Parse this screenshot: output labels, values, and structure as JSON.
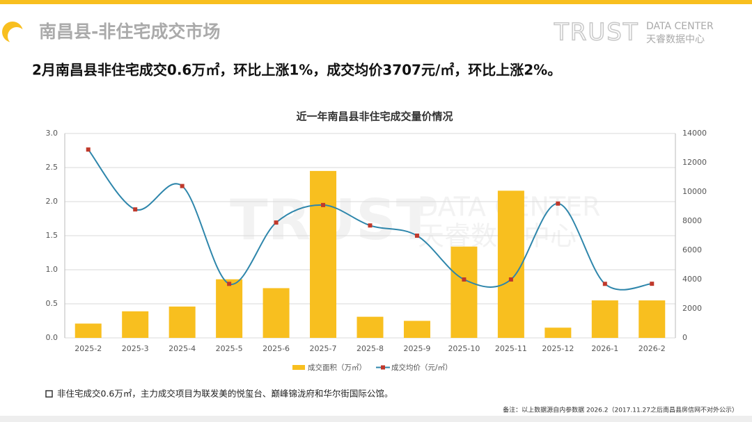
{
  "header": {
    "title": "南昌县-非住宅成交市场",
    "logo": {
      "brand": "TRUST",
      "en": "DATA CENTER",
      "cn": "天睿数据中心"
    }
  },
  "summary": "2月南昌县非住宅成交0.6万㎡，环比上涨1%，成交均价3707元/㎡，环比上涨2%。",
  "chart_data": {
    "type": "bar",
    "title": "近一年南昌县非住宅成交量价情况",
    "categories": [
      "2025-2",
      "2025-3",
      "2025-4",
      "2025-5",
      "2025-6",
      "2025-7",
      "2025-8",
      "2025-9",
      "2025-10",
      "2025-11",
      "2025-12",
      "2026-1",
      "2026-2"
    ],
    "series": [
      {
        "name": "成交面积（万㎡）",
        "type": "bar",
        "color": "#f8bf1f",
        "values": [
          0.21,
          0.39,
          0.46,
          0.86,
          0.73,
          2.45,
          0.31,
          0.25,
          1.34,
          2.16,
          0.15,
          0.55,
          0.55
        ]
      },
      {
        "name": "成交均价（元/㎡）",
        "type": "line",
        "axis": "y2",
        "color": "#2e86ab",
        "marker_color": "#c0392b",
        "values": [
          12900,
          8800,
          10400,
          3700,
          7900,
          9100,
          7700,
          7000,
          4000,
          4000,
          9200,
          3700,
          3707
        ]
      }
    ],
    "ylim": [
      0,
      3
    ],
    "yticks": [
      {
        "value": 0,
        "label": "0.0"
      },
      0.5,
      {
        "value": 1,
        "label": "1.0"
      },
      1.5,
      {
        "value": 2,
        "label": "2.0"
      },
      2.5,
      {
        "value": 3,
        "label": "3.0"
      }
    ],
    "y2lim": [
      0,
      14000
    ],
    "y2ticks": [
      0,
      2000,
      4000,
      6000,
      8000,
      10000,
      12000,
      14000
    ],
    "legend": "bottom"
  },
  "note": "非住宅成交0.6万㎡，主力成交项目为联发美的悦玺台、巅峰锦泷府和华尔街国际公馆。",
  "footnote": "备注：以上数据源自内参数据 2026.2（2017.11.27之后南昌县房信网不对外公示）"
}
